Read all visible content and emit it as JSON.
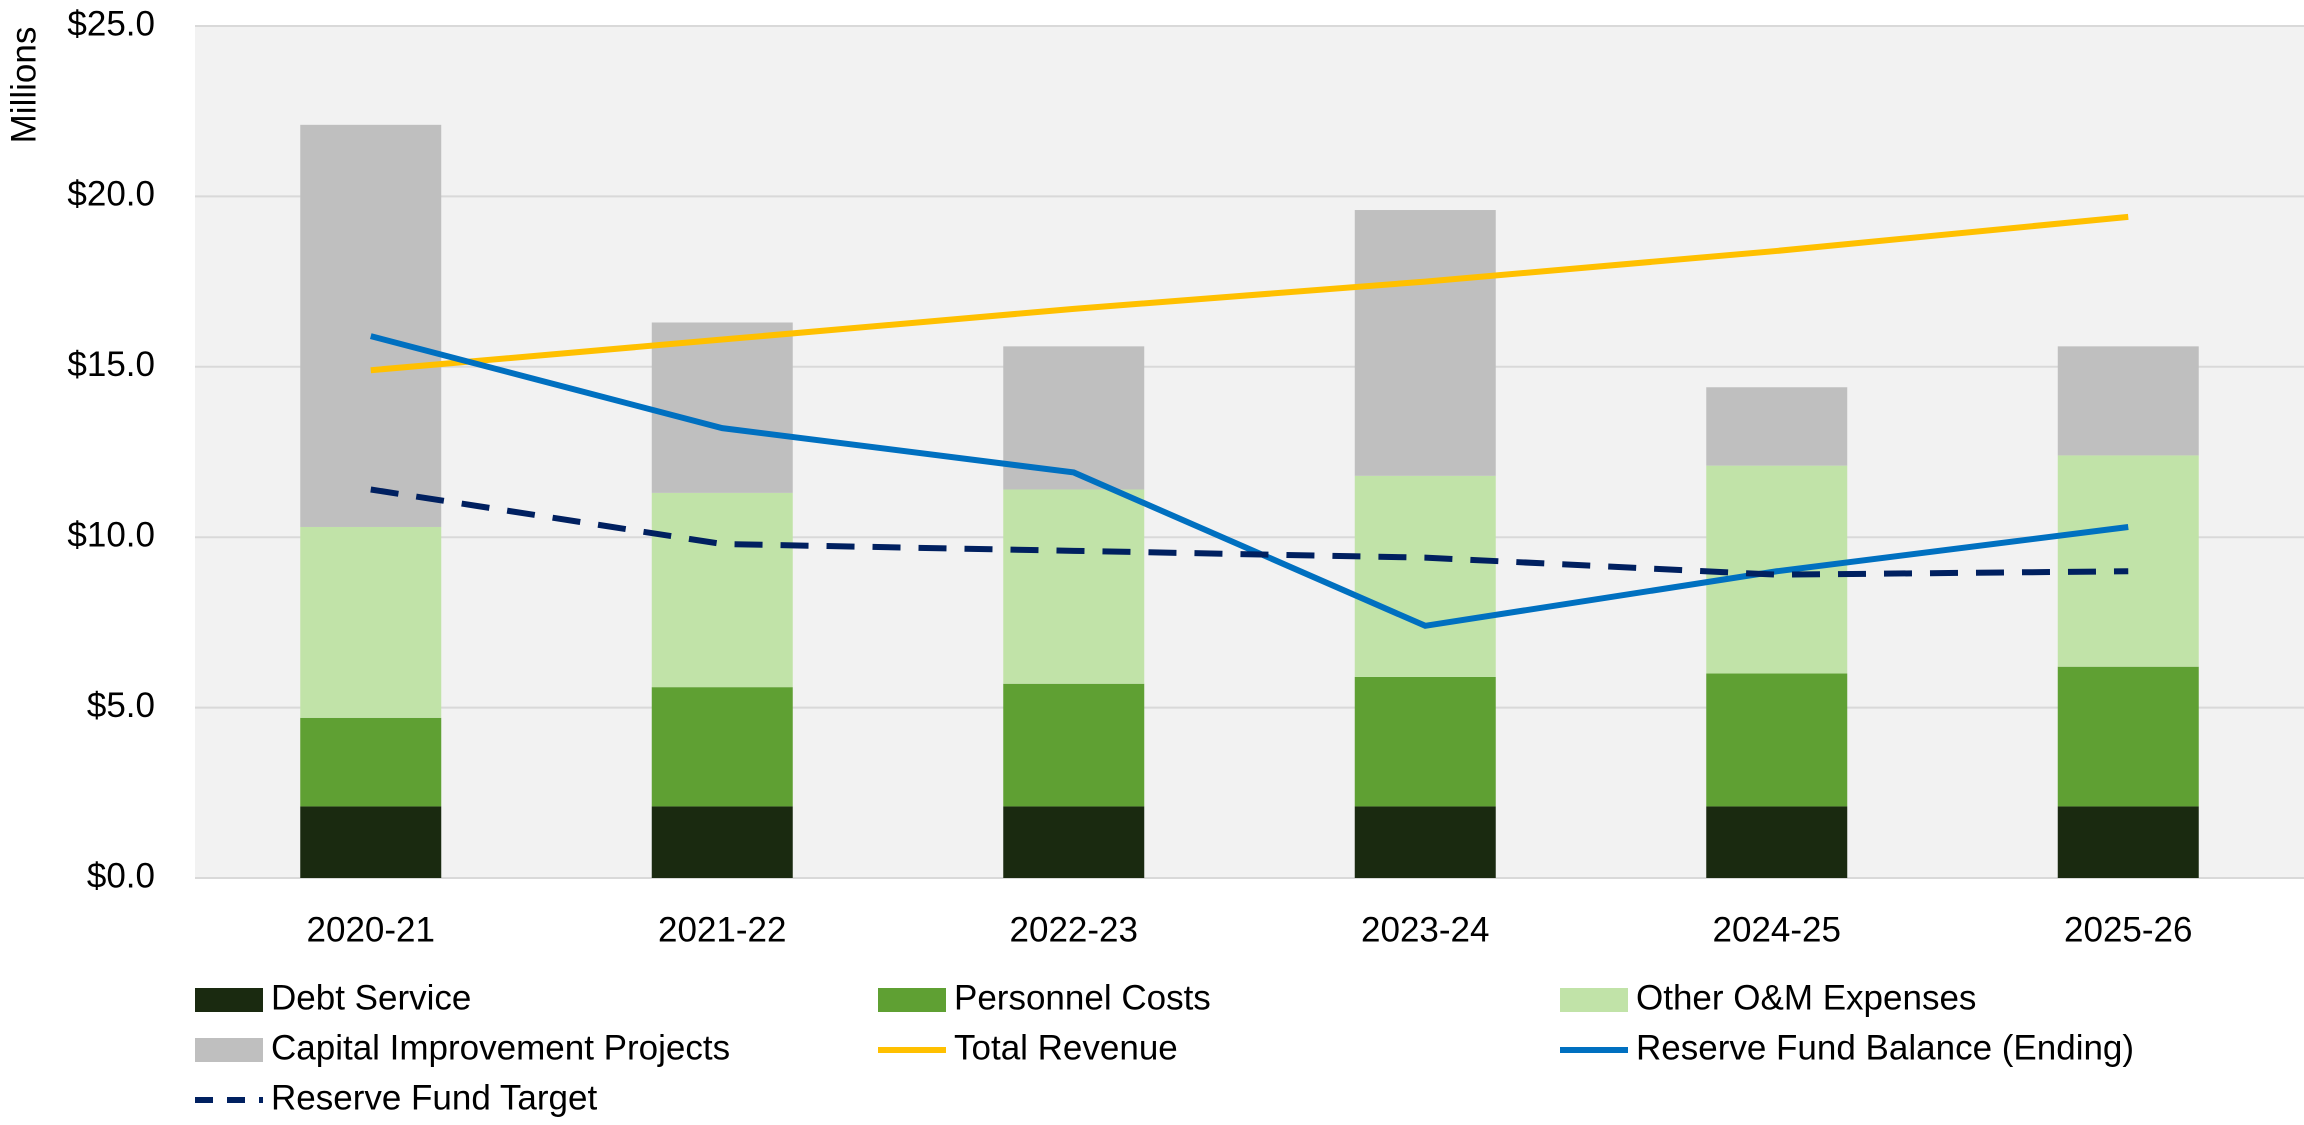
{
  "chart_data": {
    "type": "bar",
    "stacked": true,
    "y_label": "Millions",
    "categories": [
      "2020-21",
      "2021-22",
      "2022-23",
      "2023-24",
      "2024-25",
      "2025-26"
    ],
    "series": [
      {
        "name": "Debt Service",
        "type": "bar",
        "color": "#1a2a10",
        "values": [
          2.1,
          2.1,
          2.1,
          2.1,
          2.1,
          2.1
        ]
      },
      {
        "name": "Personnel Costs",
        "type": "bar",
        "color": "#5fa033",
        "values": [
          2.6,
          3.5,
          3.6,
          3.8,
          3.9,
          4.1
        ]
      },
      {
        "name": "Other O&M Expenses",
        "type": "bar",
        "color": "#c1e3a8",
        "values": [
          5.6,
          5.7,
          5.7,
          5.9,
          6.1,
          6.2
        ]
      },
      {
        "name": "Capital Improvement Projects",
        "type": "bar",
        "color": "#bfbfbf",
        "values": [
          11.8,
          5.0,
          4.2,
          7.8,
          2.3,
          3.2
        ]
      },
      {
        "name": "Total Revenue",
        "type": "line",
        "color": "#ffc000",
        "values": [
          14.9,
          15.8,
          16.7,
          17.5,
          18.4,
          19.4
        ]
      },
      {
        "name": "Reserve Fund Balance (Ending)",
        "type": "line",
        "color": "#0070c0",
        "values": [
          15.9,
          13.2,
          11.9,
          7.4,
          9.0,
          10.3
        ]
      },
      {
        "name": "Reserve Fund Target",
        "type": "line",
        "dashed": true,
        "color": "#002060",
        "values": [
          11.4,
          9.8,
          9.6,
          9.4,
          8.9,
          9.0
        ]
      }
    ],
    "ylim": [
      0,
      25
    ],
    "yticks": [
      {
        "value": 0,
        "label": "$0.0"
      },
      {
        "value": 5,
        "label": "$5.0"
      },
      {
        "value": 10,
        "label": "$10.0"
      },
      {
        "value": 15,
        "label": "$15.0"
      },
      {
        "value": 20,
        "label": "$20.0"
      },
      {
        "value": 25,
        "label": "$25.0"
      }
    ],
    "grid": true,
    "legend": "bottom"
  }
}
